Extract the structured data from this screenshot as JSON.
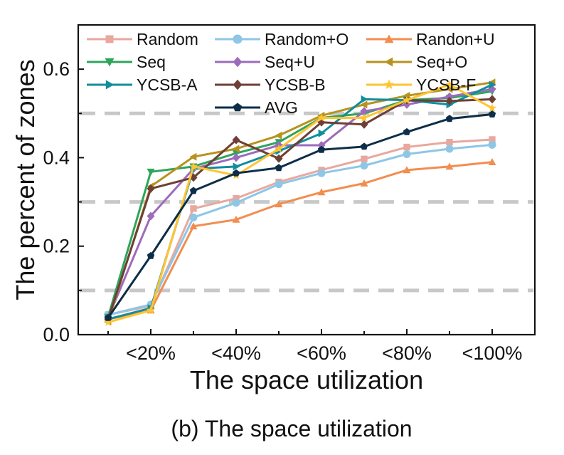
{
  "chart_data": {
    "type": "line",
    "caption": "(b) The space utilization",
    "xlabel": "The space utilization",
    "ylabel": "The percent of zones",
    "x": [
      10,
      20,
      30,
      40,
      50,
      60,
      70,
      80,
      90,
      100
    ],
    "x_ticks": [
      {
        "x": 20,
        "label": "<20%"
      },
      {
        "x": 40,
        "label": "<40%"
      },
      {
        "x": 60,
        "label": "<60%"
      },
      {
        "x": 80,
        "label": "<80%"
      },
      {
        "x": 100,
        "label": "<100%"
      }
    ],
    "xlim": [
      3,
      110
    ],
    "ylim": [
      0,
      0.7
    ],
    "y_ticks": [
      {
        "y": 0.0,
        "label": "0.0"
      },
      {
        "y": 0.2,
        "label": "0.2"
      },
      {
        "y": 0.4,
        "label": "0.4"
      },
      {
        "y": 0.6,
        "label": "0.6"
      }
    ],
    "grid_dashed_y": [
      0.1,
      0.3,
      0.5
    ],
    "legend_position": "top",
    "series": [
      {
        "name": "Random",
        "color": "#e8a89e",
        "marker": "square",
        "values": [
          0.045,
          0.065,
          0.285,
          0.308,
          0.345,
          0.372,
          0.397,
          0.424,
          0.435,
          0.441
        ]
      },
      {
        "name": "Random+O",
        "color": "#8ec6e6",
        "marker": "circle",
        "values": [
          0.045,
          0.068,
          0.265,
          0.298,
          0.34,
          0.365,
          0.382,
          0.408,
          0.42,
          0.429
        ]
      },
      {
        "name": "Randon+U",
        "color": "#f28d50",
        "marker": "triangle-up",
        "values": [
          0.035,
          0.055,
          0.245,
          0.26,
          0.295,
          0.322,
          0.342,
          0.372,
          0.38,
          0.39
        ]
      },
      {
        "name": "Seq",
        "color": "#2ea55b",
        "marker": "triangle-down",
        "values": [
          0.04,
          0.368,
          0.38,
          0.41,
          0.435,
          0.49,
          0.5,
          0.53,
          0.535,
          0.55
        ]
      },
      {
        "name": "Seq+U",
        "color": "#9d6bbd",
        "marker": "diamond",
        "values": [
          0.038,
          0.268,
          0.375,
          0.4,
          0.428,
          0.428,
          0.505,
          0.52,
          0.538,
          0.555
        ]
      },
      {
        "name": "Seq+O",
        "color": "#b8921f",
        "marker": "triangle-left",
        "values": [
          0.03,
          0.335,
          0.402,
          0.42,
          0.45,
          0.495,
          0.52,
          0.54,
          0.555,
          0.57
        ]
      },
      {
        "name": "YCSB-A",
        "color": "#128d9c",
        "marker": "triangle-right",
        "values": [
          0.035,
          0.06,
          0.375,
          0.38,
          0.415,
          0.455,
          0.532,
          0.53,
          0.52,
          0.565
        ]
      },
      {
        "name": "YCSB-B",
        "color": "#6e3f35",
        "marker": "diamond",
        "values": [
          0.035,
          0.33,
          0.355,
          0.44,
          0.398,
          0.48,
          0.475,
          0.53,
          0.528,
          0.532
        ]
      },
      {
        "name": "YCSB-F",
        "color": "#ffc531",
        "marker": "star",
        "values": [
          0.028,
          0.055,
          0.38,
          0.36,
          0.42,
          0.49,
          0.49,
          0.53,
          0.565,
          0.512
        ]
      },
      {
        "name": "AVG",
        "color": "#0d2e48",
        "marker": "pentagon",
        "values": [
          0.038,
          0.178,
          0.325,
          0.365,
          0.377,
          0.418,
          0.425,
          0.458,
          0.488,
          0.498
        ]
      }
    ]
  }
}
